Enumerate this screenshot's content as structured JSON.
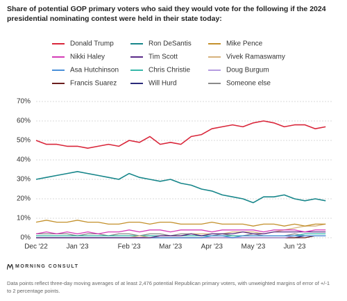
{
  "chart_data": {
    "type": "line",
    "title": "Share of potential GOP primary voters who said they would vote for the following if the 2024 presidential nominating contest were held in their state today:",
    "categories": [
      "Dec '22",
      null,
      null,
      null,
      "Jan '23",
      null,
      null,
      null,
      null,
      "Feb '23",
      null,
      null,
      null,
      "Mar '23",
      null,
      null,
      null,
      "Apr '23",
      null,
      null,
      null,
      "May '23",
      null,
      null,
      null,
      "Jun '23",
      null,
      null,
      null
    ],
    "ylim": [
      0,
      70
    ],
    "yticks": [
      {
        "value": 0,
        "label": "0%"
      },
      {
        "value": 10,
        "label": "10%"
      },
      {
        "value": 20,
        "label": "20%"
      },
      {
        "value": 30,
        "label": "30%"
      },
      {
        "value": 40,
        "label": "40%"
      },
      {
        "value": 50,
        "label": "50%"
      },
      {
        "value": 60,
        "label": "60%"
      },
      {
        "value": 70,
        "label": "70%"
      }
    ],
    "grid": true,
    "series": [
      {
        "name": "Donald Trump",
        "color": "#d9263a",
        "values": [
          50,
          48,
          48,
          47,
          47,
          46,
          47,
          48,
          47,
          50,
          49,
          52,
          48,
          49,
          48,
          52,
          53,
          56,
          57,
          58,
          57,
          59,
          60,
          59,
          57,
          58,
          58,
          56,
          57
        ]
      },
      {
        "name": "Ron DeSantis",
        "color": "#17868a",
        "values": [
          30,
          31,
          32,
          33,
          34,
          33,
          32,
          31,
          30,
          33,
          31,
          30,
          29,
          30,
          28,
          27,
          25,
          24,
          22,
          21,
          20,
          18,
          21,
          21,
          22,
          20,
          19,
          20,
          19
        ]
      },
      {
        "name": "Mike Pence",
        "color": "#c3902b",
        "values": [
          8,
          9,
          8,
          8,
          9,
          8,
          8,
          7,
          7,
          8,
          8,
          7,
          8,
          8,
          7,
          7,
          7,
          8,
          7,
          7,
          7,
          6,
          7,
          7,
          6,
          7,
          6,
          7,
          7
        ]
      },
      {
        "name": "Nikki Haley",
        "color": "#d43bb6",
        "values": [
          2,
          3,
          2,
          3,
          2,
          3,
          2,
          3,
          3,
          4,
          3,
          4,
          4,
          3,
          4,
          4,
          4,
          3,
          4,
          4,
          4,
          4,
          3,
          4,
          4,
          4,
          3,
          4,
          4
        ]
      },
      {
        "name": "Tim Scott",
        "color": "#5a2a88",
        "values": [
          0,
          0,
          0,
          0,
          0,
          0,
          0,
          0,
          0,
          0,
          0,
          0,
          1,
          1,
          1,
          2,
          1,
          2,
          2,
          2,
          3,
          2,
          2,
          3,
          3,
          3,
          3,
          3,
          3
        ]
      },
      {
        "name": "Vivek Ramaswamy",
        "color": "#d6b27c",
        "values": [
          0,
          0,
          0,
          0,
          0,
          0,
          0,
          0,
          0,
          0,
          1,
          0,
          1,
          1,
          1,
          2,
          2,
          2,
          2,
          3,
          3,
          3,
          2,
          3,
          4,
          5,
          6,
          6,
          7
        ]
      },
      {
        "name": "Asa Hutchinson",
        "color": "#4a90d9",
        "values": [
          0,
          0,
          0,
          0,
          0,
          0,
          0,
          0,
          0,
          0,
          0,
          0,
          0,
          0,
          0,
          0,
          0,
          1,
          1,
          0,
          1,
          1,
          1,
          1,
          1,
          1,
          1,
          1,
          1
        ]
      },
      {
        "name": "Chris Christie",
        "color": "#37b8a9",
        "values": [
          1,
          1,
          1,
          1,
          1,
          1,
          1,
          1,
          1,
          1,
          1,
          1,
          1,
          1,
          1,
          1,
          1,
          1,
          1,
          1,
          1,
          1,
          1,
          1,
          1,
          1,
          2,
          2,
          2
        ]
      },
      {
        "name": "Doug Burgum",
        "color": "#b59be0",
        "values": [
          0,
          0,
          0,
          0,
          0,
          0,
          0,
          0,
          0,
          0,
          0,
          0,
          0,
          0,
          0,
          0,
          0,
          0,
          0,
          0,
          0,
          0,
          0,
          0,
          0,
          1,
          1,
          1,
          1
        ]
      },
      {
        "name": "Francis Suarez",
        "color": "#6b1e1e",
        "values": [
          0,
          0,
          0,
          0,
          0,
          0,
          0,
          0,
          0,
          0,
          0,
          0,
          0,
          0,
          0,
          0,
          0,
          0,
          0,
          0,
          0,
          0,
          0,
          0,
          0,
          0,
          0,
          1,
          1
        ]
      },
      {
        "name": "Will Hurd",
        "color": "#2a2a7a",
        "values": [
          0,
          0,
          0,
          0,
          0,
          0,
          0,
          0,
          0,
          0,
          0,
          0,
          0,
          0,
          0,
          0,
          0,
          0,
          0,
          0,
          0,
          0,
          0,
          0,
          0,
          0,
          1,
          1,
          1
        ]
      },
      {
        "name": "Someone else",
        "color": "#8a8a8a",
        "values": [
          2,
          2,
          2,
          2,
          1,
          2,
          2,
          1,
          2,
          2,
          1,
          2,
          2,
          1,
          2,
          2,
          1,
          1,
          2,
          1,
          1,
          2,
          1,
          1,
          1,
          2,
          1,
          1,
          1
        ]
      }
    ]
  },
  "footer": {
    "logo": "MORNING CONSULT",
    "note": "Data points reflect three-day moving averages of at least 2,476 potential Republican primary voters, with unweighted margins of error of +/-1 to 2 percentage points."
  }
}
